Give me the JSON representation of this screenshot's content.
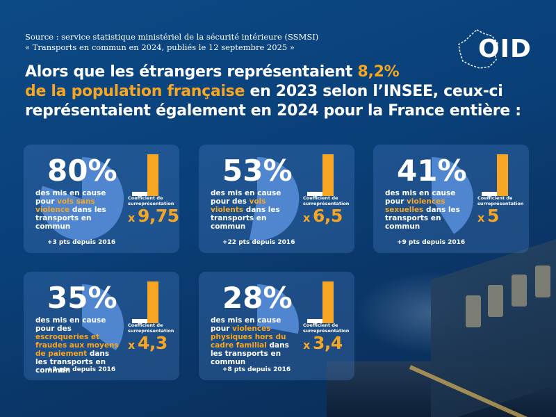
{
  "source": {
    "label": "Source :",
    "line1": "service statistique ministériel de la sécurité intérieure (SSMSI)",
    "line2": "« Transports en commun en 2024, publiés le 12 septembre 2025 »"
  },
  "logo": {
    "text": "OID"
  },
  "headline": {
    "part1": "Alors que les étrangers représentaient ",
    "highlight1": "8,2%",
    "highlight2": "de la population française",
    "part2": " en 2023 selon l’INSEE, ceux-ci représentaient également en 2024 pour la France entière :"
  },
  "colors": {
    "accent": "#f6a623",
    "pie": "#4f86cf",
    "card": "#3f6fa8",
    "background": "#0c4a86"
  },
  "coefficient_label": "Coefficient de surreprésentation",
  "coefficient_prefix": "x",
  "stats": [
    {
      "percent": "80%",
      "value": 80,
      "pre": "des mis en cause pour ",
      "highlight": "vols sans violence",
      "post": " dans les transports en commun",
      "coefficient": "9,75",
      "coefficient_value": 9.75,
      "delta": "+3 pts depuis 2016"
    },
    {
      "percent": "53%",
      "value": 53,
      "pre": "des mis en cause pour des ",
      "highlight": "vols violents",
      "post": " dans les transports en commun",
      "coefficient": "6,5",
      "coefficient_value": 6.5,
      "delta": "+22 pts depuis 2016"
    },
    {
      "percent": "41%",
      "value": 41,
      "pre": "des mis en cause pour ",
      "highlight": "violences sexuelles",
      "post": " dans les transports en commun",
      "coefficient": "5",
      "coefficient_value": 5,
      "delta": "+9 pts depuis 2016"
    },
    {
      "percent": "35%",
      "value": 35,
      "pre": "des mis en cause pour des ",
      "highlight": "escroqueries et fraudes aux moyens de paiement",
      "post": " dans les transports en commun",
      "coefficient": "4,3",
      "coefficient_value": 4.3,
      "delta": "+2 pts depuis 2016"
    },
    {
      "percent": "28%",
      "value": 28,
      "pre": "des mis en cause pour ",
      "highlight": "violences physiques hors du cadre familial",
      "post": " dans les transports en commun",
      "coefficient": "3,4",
      "coefficient_value": 3.4,
      "delta": "+8 pts depuis 2016"
    }
  ]
}
